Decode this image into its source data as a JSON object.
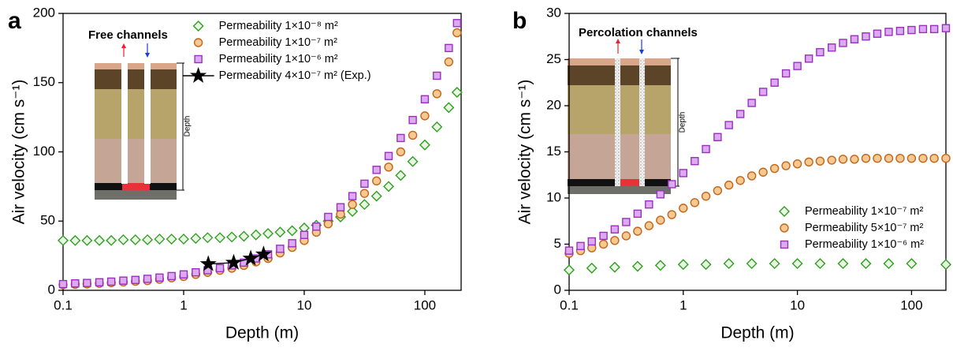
{
  "chart_data": [
    {
      "type": "scatter",
      "panel": "a",
      "xlabel": "Depth (m)",
      "ylabel": "Air velocity (cm s⁻¹)",
      "xscale": "log",
      "xlim": [
        0.1,
        200
      ],
      "xticks": [
        0.1,
        1,
        10,
        100
      ],
      "ylim": [
        0,
        200
      ],
      "yticks": [
        0,
        50,
        100,
        150,
        200
      ],
      "legend": "upper center",
      "inset": {
        "title": "Free channels",
        "label": "Depth"
      },
      "series": [
        {
          "name": "Permeability 1×10⁻⁸ m²",
          "color": "#2e9e1f",
          "fill": "#eaf6e4",
          "marker": "diamond",
          "x": [
            0.1,
            0.126,
            0.158,
            0.2,
            0.251,
            0.316,
            0.398,
            0.501,
            0.631,
            0.794,
            1,
            1.26,
            1.58,
            2,
            2.51,
            3.16,
            3.98,
            5.01,
            6.31,
            7.94,
            10,
            12.6,
            15.8,
            20,
            25.1,
            31.6,
            39.8,
            50.1,
            63.1,
            79.4,
            100,
            126,
            158,
            185
          ],
          "values": [
            36,
            36,
            36,
            36,
            36,
            36.5,
            36.5,
            36.5,
            37,
            37,
            37,
            37.5,
            38,
            38,
            38.5,
            39,
            40,
            41,
            42,
            43,
            45,
            47,
            50,
            53,
            57,
            62,
            68,
            75,
            83,
            93,
            105,
            118,
            132,
            143
          ]
        },
        {
          "name": "Permeability 1×10⁻⁷ m²",
          "color": "#c0651a",
          "fill": "#f7c891",
          "marker": "circle",
          "x": [
            0.1,
            0.126,
            0.158,
            0.2,
            0.251,
            0.316,
            0.398,
            0.501,
            0.631,
            0.794,
            1,
            1.26,
            1.58,
            2,
            2.51,
            3.16,
            3.98,
            5.01,
            6.31,
            7.94,
            10,
            12.6,
            15.8,
            20,
            25.1,
            31.6,
            39.8,
            50.1,
            63.1,
            79.4,
            100,
            126,
            158,
            185
          ],
          "values": [
            4,
            4.3,
            4.6,
            5,
            5.5,
            6,
            6.5,
            7,
            8,
            9,
            10,
            11.5,
            13,
            14.5,
            16,
            18,
            20.5,
            23,
            27,
            31,
            36,
            42,
            48,
            55,
            62,
            70,
            79,
            89,
            100,
            112,
            126,
            142,
            165,
            186
          ]
        },
        {
          "name": "Permeability 1×10⁻⁶ m²",
          "color": "#9a2fbf",
          "fill": "#dcaaf0",
          "marker": "square",
          "x": [
            0.1,
            0.126,
            0.158,
            0.2,
            0.251,
            0.316,
            0.398,
            0.501,
            0.631,
            0.794,
            1,
            1.26,
            1.58,
            2,
            2.51,
            3.16,
            3.98,
            5.01,
            6.31,
            7.94,
            10,
            12.6,
            15.8,
            20,
            25.1,
            31.6,
            39.8,
            50.1,
            63.1,
            79.4,
            100,
            126,
            158,
            185
          ],
          "values": [
            4.5,
            5,
            5.3,
            5.8,
            6.3,
            7,
            7.5,
            8.3,
            9.2,
            10.3,
            11.5,
            13,
            14.5,
            16,
            18,
            20,
            23,
            26,
            30,
            34,
            40,
            46,
            53,
            60,
            68,
            77,
            87,
            97,
            110,
            123,
            138,
            155,
            175,
            193
          ]
        },
        {
          "name": "Permeability 4×10⁻⁷ m² (Exp.)",
          "color": "#000000",
          "fill": "#000000",
          "marker": "star",
          "line": true,
          "x": [
            1.6,
            2.6,
            3.6,
            4.6
          ],
          "values": [
            19,
            20,
            23,
            26
          ]
        }
      ]
    },
    {
      "type": "scatter",
      "panel": "b",
      "xlabel": "Depth (m)",
      "ylabel": "Air velocity (cm s⁻¹)",
      "xscale": "log",
      "xlim": [
        0.1,
        200
      ],
      "xticks": [
        0.1,
        1,
        10,
        100
      ],
      "ylim": [
        0,
        30
      ],
      "yticks": [
        0,
        5,
        10,
        15,
        20,
        25,
        30
      ],
      "legend": "lower right",
      "inset": {
        "title": "Percolation channels",
        "label": "Depth"
      },
      "series": [
        {
          "name": "Permeability 1×10⁻⁷ m²",
          "color": "#2e9e1f",
          "fill": "#eaf6e4",
          "marker": "diamond",
          "x": [
            0.1,
            0.158,
            0.251,
            0.398,
            0.631,
            1,
            1.58,
            2.51,
            3.98,
            6.31,
            10,
            15.8,
            25.1,
            39.8,
            63.1,
            100,
            200
          ],
          "values": [
            2.2,
            2.4,
            2.5,
            2.6,
            2.7,
            2.8,
            2.8,
            2.9,
            2.9,
            2.9,
            2.9,
            2.9,
            2.9,
            2.9,
            2.9,
            2.9,
            2.8
          ]
        },
        {
          "name": "Permeability 5×10⁻⁷ m²",
          "color": "#c0651a",
          "fill": "#f7c891",
          "marker": "circle",
          "x": [
            0.1,
            0.126,
            0.158,
            0.2,
            0.251,
            0.316,
            0.398,
            0.501,
            0.631,
            0.794,
            1,
            1.26,
            1.58,
            2,
            2.51,
            3.16,
            3.98,
            5.01,
            6.31,
            7.94,
            10,
            12.6,
            15.8,
            20,
            25.1,
            31.6,
            39.8,
            50.1,
            63.1,
            79.4,
            100,
            126,
            158,
            200
          ],
          "values": [
            4,
            4.3,
            4.6,
            5,
            5.4,
            5.9,
            6.4,
            7,
            7.6,
            8.2,
            8.9,
            9.5,
            10.2,
            10.8,
            11.4,
            11.9,
            12.4,
            12.8,
            13.2,
            13.5,
            13.7,
            13.9,
            14,
            14.1,
            14.2,
            14.2,
            14.3,
            14.3,
            14.3,
            14.3,
            14.3,
            14.3,
            14.3,
            14.3
          ]
        },
        {
          "name": "Permeability 1×10⁻⁶ m²",
          "color": "#9a2fbf",
          "fill": "#dcaaf0",
          "marker": "square",
          "x": [
            0.1,
            0.126,
            0.158,
            0.2,
            0.251,
            0.316,
            0.398,
            0.501,
            0.631,
            0.794,
            1,
            1.26,
            1.58,
            2,
            2.51,
            3.16,
            3.98,
            5.01,
            6.31,
            7.94,
            10,
            12.6,
            15.8,
            20,
            25.1,
            31.6,
            39.8,
            50.1,
            63.1,
            79.4,
            100,
            126,
            158,
            200
          ],
          "values": [
            4.3,
            4.8,
            5.3,
            5.9,
            6.6,
            7.4,
            8.3,
            9.3,
            10.4,
            11.5,
            12.7,
            14,
            15.3,
            16.6,
            17.9,
            19.1,
            20.3,
            21.5,
            22.5,
            23.5,
            24.3,
            25.1,
            25.8,
            26.3,
            26.8,
            27.2,
            27.5,
            27.8,
            28,
            28.1,
            28.2,
            28.3,
            28.3,
            28.4
          ]
        }
      ]
    }
  ]
}
